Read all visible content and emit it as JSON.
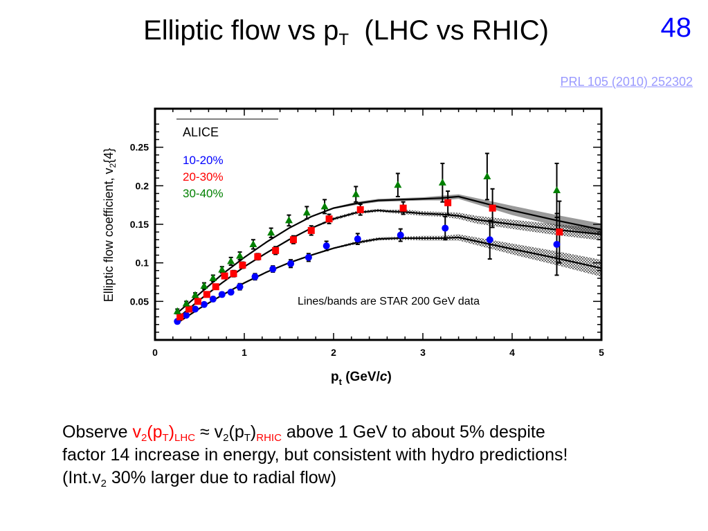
{
  "slide": {
    "title": {
      "main": "Elliptic flow vs p",
      "sub": "T",
      "tail": "  (LHC vs RHIC)"
    },
    "number": "48",
    "reference": "PRL 105 (2010) 252302",
    "caption": {
      "line1_a": "Observe ",
      "v": "v",
      "two": "2",
      "open": "(p",
      "T": "T",
      "close": ")",
      "LHC": "LHC",
      "approx": " ≈ ",
      "RHIC": "RHIC",
      "line1_b": " above 1 GeV to about 5% despite",
      "line2": "factor 14 increase in energy, but consistent with hydro predictions!",
      "line3_a": "(Int.v",
      "line3_b": " 30% larger due to radial flow)"
    }
  },
  "colors": {
    "blue": "#0000ff",
    "red": "#ff0000",
    "green": "#008000",
    "band_light": "#9a9a9a"
  },
  "chart_data": {
    "type": "scatter",
    "xlabel": "p_t (GeV/c)",
    "ylabel": "Elliptic flow coefficient, v2{4}",
    "xlim": [
      0,
      5
    ],
    "ylim": [
      0,
      0.3
    ],
    "x_ticks": [
      "0",
      "1",
      "2",
      "3",
      "4",
      "5"
    ],
    "y_ticks": [
      "0.05",
      "0.1",
      "0.15",
      "0.2",
      "0.25"
    ],
    "legend_title": "ALICE",
    "annotation": "Lines/bands are STAR 200 GeV data",
    "series": [
      {
        "name": "10-20%",
        "color": "#0000ff",
        "marker": "circle",
        "x": [
          0.25,
          0.35,
          0.45,
          0.55,
          0.65,
          0.75,
          0.85,
          0.95,
          1.12,
          1.32,
          1.52,
          1.72,
          1.92,
          2.27,
          2.75,
          3.25,
          3.75,
          4.5
        ],
        "y": [
          0.024,
          0.032,
          0.04,
          0.046,
          0.053,
          0.059,
          0.062,
          0.069,
          0.082,
          0.092,
          0.099,
          0.107,
          0.122,
          0.131,
          0.136,
          0.145,
          0.13,
          0.124
        ],
        "err": [
          0.002,
          0.002,
          0.002,
          0.002,
          0.003,
          0.003,
          0.003,
          0.004,
          0.004,
          0.004,
          0.005,
          0.005,
          0.006,
          0.007,
          0.008,
          0.015,
          0.025,
          0.04
        ]
      },
      {
        "name": "20-30%",
        "color": "#ff0000",
        "marker": "square",
        "x": [
          0.28,
          0.38,
          0.48,
          0.58,
          0.68,
          0.78,
          0.88,
          0.98,
          1.15,
          1.35,
          1.55,
          1.75,
          1.95,
          2.3,
          2.78,
          3.28,
          3.78,
          4.53
        ],
        "y": [
          0.03,
          0.04,
          0.05,
          0.059,
          0.069,
          0.083,
          0.086,
          0.097,
          0.108,
          0.116,
          0.13,
          0.142,
          0.157,
          0.169,
          0.171,
          0.178,
          0.171,
          0.14
        ],
        "err": [
          0.002,
          0.002,
          0.002,
          0.003,
          0.003,
          0.003,
          0.004,
          0.004,
          0.004,
          0.005,
          0.005,
          0.006,
          0.006,
          0.007,
          0.008,
          0.015,
          0.025,
          0.04
        ]
      },
      {
        "name": "30-40%",
        "color": "#008000",
        "marker": "triangle",
        "x": [
          0.25,
          0.35,
          0.45,
          0.55,
          0.65,
          0.75,
          0.85,
          0.95,
          1.1,
          1.3,
          1.5,
          1.7,
          1.9,
          2.25,
          2.72,
          3.22,
          3.72,
          4.5
        ],
        "y": [
          0.037,
          0.047,
          0.058,
          0.07,
          0.08,
          0.091,
          0.102,
          0.109,
          0.124,
          0.139,
          0.155,
          0.165,
          0.173,
          0.189,
          0.201,
          0.204,
          0.212,
          0.194
        ],
        "err": [
          0.003,
          0.003,
          0.003,
          0.004,
          0.004,
          0.004,
          0.005,
          0.005,
          0.006,
          0.006,
          0.007,
          0.008,
          0.009,
          0.01,
          0.015,
          0.025,
          0.03,
          0.035
        ]
      }
    ],
    "star_curves": [
      {
        "band": "light",
        "x": [
          0.25,
          0.5,
          0.75,
          1.0,
          1.25,
          1.5,
          1.75,
          2.0,
          2.25,
          2.5,
          2.75,
          3.0,
          3.2,
          3.4,
          3.6,
          4.0,
          4.5,
          5.0
        ],
        "y": [
          0.035,
          0.06,
          0.085,
          0.107,
          0.127,
          0.145,
          0.16,
          0.171,
          0.177,
          0.181,
          0.182,
          0.183,
          0.184,
          0.186,
          0.18,
          0.168,
          0.155,
          0.143
        ],
        "w": [
          0.001,
          0.001,
          0.001,
          0.001,
          0.001,
          0.001,
          0.001,
          0.001,
          0.002,
          0.002,
          0.002,
          0.002,
          0.003,
          0.003,
          0.004,
          0.006,
          0.007,
          0.008
        ]
      },
      {
        "band": "hatched",
        "x": [
          0.25,
          0.5,
          0.75,
          1.0,
          1.25,
          1.5,
          1.75,
          2.0,
          2.25,
          2.5,
          2.6,
          2.8,
          3.0,
          3.2,
          3.4,
          3.6,
          4.0,
          4.5,
          5.0
        ],
        "y": [
          0.028,
          0.052,
          0.074,
          0.095,
          0.113,
          0.13,
          0.145,
          0.157,
          0.165,
          0.168,
          0.167,
          0.166,
          0.164,
          0.163,
          0.161,
          0.156,
          0.15,
          0.143,
          0.137
        ],
        "w": [
          0.001,
          0.001,
          0.001,
          0.001,
          0.001,
          0.001,
          0.001,
          0.002,
          0.002,
          0.002,
          0.002,
          0.003,
          0.003,
          0.003,
          0.004,
          0.005,
          0.006,
          0.007,
          0.008
        ]
      },
      {
        "band": "hatched",
        "x": [
          0.25,
          0.5,
          0.75,
          1.0,
          1.25,
          1.5,
          1.75,
          2.0,
          2.25,
          2.5,
          2.75,
          3.0,
          3.2,
          3.4,
          3.6,
          4.0,
          4.5,
          5.0
        ],
        "y": [
          0.022,
          0.041,
          0.058,
          0.074,
          0.088,
          0.1,
          0.11,
          0.119,
          0.126,
          0.131,
          0.132,
          0.132,
          0.132,
          0.133,
          0.128,
          0.118,
          0.106,
          0.093
        ],
        "w": [
          0.001,
          0.001,
          0.001,
          0.001,
          0.001,
          0.001,
          0.001,
          0.001,
          0.002,
          0.002,
          0.002,
          0.003,
          0.003,
          0.004,
          0.005,
          0.007,
          0.009,
          0.011
        ]
      }
    ]
  }
}
